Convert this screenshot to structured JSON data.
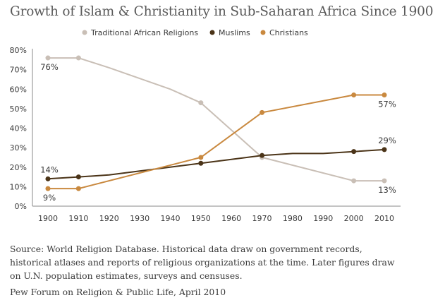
{
  "chart_data": {
    "type": "line",
    "title": "Growth of Islam & Christianity in Sub-Saharan Africa Since 1900",
    "xlabel": "",
    "ylabel": "",
    "x": [
      1900,
      1910,
      1920,
      1930,
      1940,
      1950,
      1960,
      1970,
      1980,
      1990,
      2000,
      2010
    ],
    "ylim": [
      0,
      80
    ],
    "yticks": [
      0,
      10,
      20,
      30,
      40,
      50,
      60,
      70,
      80
    ],
    "ytick_labels": [
      "0%",
      "10%",
      "20%",
      "30%",
      "40%",
      "50%",
      "60%",
      "70%",
      "80%"
    ],
    "xtick_labels": [
      "1900",
      "1910",
      "1920",
      "1930",
      "1940",
      "1950",
      "1960",
      "1970",
      "1980",
      "1990",
      "2000",
      "2010"
    ],
    "grid": false,
    "legend": "top",
    "series": [
      {
        "name": "Traditional African Religions",
        "color": "#c9bfb6",
        "points": [
          {
            "x": 1900,
            "y": 76
          },
          {
            "x": 1910,
            "y": 76
          },
          {
            "x": 1920,
            "y": 71
          },
          {
            "x": 1940,
            "y": 60
          },
          {
            "x": 1950,
            "y": 53
          },
          {
            "x": 1970,
            "y": 25
          },
          {
            "x": 2000,
            "y": 13
          },
          {
            "x": 2010,
            "y": 13
          }
        ],
        "markers": [
          1900,
          1910,
          1950,
          1970,
          2000,
          2010
        ],
        "labels": [
          {
            "x": 1900,
            "y": 76,
            "text": "76%",
            "pos": "below"
          },
          {
            "x": 2010,
            "y": 13,
            "text": "13%",
            "pos": "below"
          }
        ]
      },
      {
        "name": "Muslims",
        "color": "#4b3418",
        "points": [
          {
            "x": 1900,
            "y": 14
          },
          {
            "x": 1910,
            "y": 15
          },
          {
            "x": 1920,
            "y": 16
          },
          {
            "x": 1950,
            "y": 22
          },
          {
            "x": 1970,
            "y": 26
          },
          {
            "x": 1980,
            "y": 27
          },
          {
            "x": 1990,
            "y": 27
          },
          {
            "x": 2000,
            "y": 28
          },
          {
            "x": 2010,
            "y": 29
          }
        ],
        "markers": [
          1900,
          1910,
          1950,
          1970,
          2000,
          2010
        ],
        "labels": [
          {
            "x": 1900,
            "y": 14,
            "text": "14%",
            "pos": "above"
          },
          {
            "x": 2010,
            "y": 29,
            "text": "29%",
            "pos": "above"
          }
        ]
      },
      {
        "name": "Christians",
        "color": "#c9893f",
        "points": [
          {
            "x": 1900,
            "y": 9
          },
          {
            "x": 1910,
            "y": 9
          },
          {
            "x": 1950,
            "y": 25
          },
          {
            "x": 1970,
            "y": 48
          },
          {
            "x": 2000,
            "y": 57
          },
          {
            "x": 2010,
            "y": 57
          }
        ],
        "markers": [
          1900,
          1910,
          1950,
          1970,
          2000,
          2010
        ],
        "labels": [
          {
            "x": 1900,
            "y": 9,
            "text": "9%",
            "pos": "below"
          },
          {
            "x": 2010,
            "y": 57,
            "text": "57%",
            "pos": "below"
          }
        ]
      }
    ]
  },
  "source_text": "Source: World Religion Database. Historical data draw on government records, historical atlases and reports of religious organizations at the time. Later figures draw on U.N. population estimates, surveys and censuses.",
  "credit_text": "Pew Forum on Religion & Public Life, April 2010"
}
